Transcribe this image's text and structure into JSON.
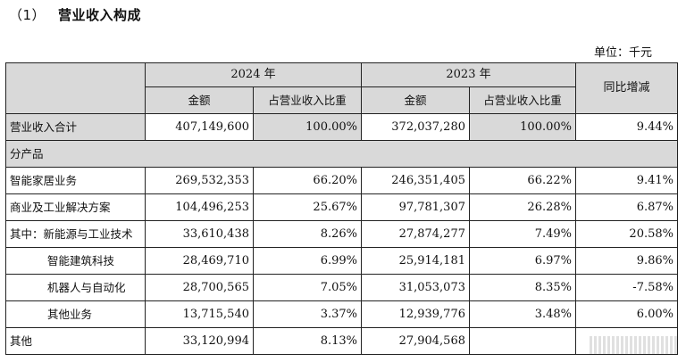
{
  "heading": {
    "number": "（1）",
    "title": "营业收入构成"
  },
  "unit": "单位：千元",
  "header": {
    "year_2024": "2024 年",
    "year_2023": "2023 年",
    "yoy": "同比增减",
    "amount": "金额",
    "share": "占营业收入比重"
  },
  "rows": [
    {
      "label": "营业收入合计",
      "a24": "407,149,600",
      "s24": "100.00%",
      "a23": "372,037,280",
      "s23": "100.00%",
      "yoy": "9.44%"
    },
    {
      "label": "分产品"
    },
    {
      "label": "智能家居业务",
      "a24": "269,532,353",
      "s24": "66.20%",
      "a23": "246,351,405",
      "s23": "66.22%",
      "yoy": "9.41%"
    },
    {
      "label": "商业及工业解决方案",
      "a24": "104,496,253",
      "s24": "25.67%",
      "a23": "97,781,307",
      "s23": "26.28%",
      "yoy": "6.87%"
    },
    {
      "label": "其中：新能源与工业技术",
      "a24": "33,610,438",
      "s24": "8.26%",
      "a23": "27,874,277",
      "s23": "7.49%",
      "yoy": "20.58%"
    },
    {
      "label": "智能建筑科技",
      "a24": "28,469,710",
      "s24": "6.99%",
      "a23": "25,914,181",
      "s23": "6.97%",
      "yoy": "9.86%"
    },
    {
      "label": "机器人与自动化",
      "a24": "28,700,565",
      "s24": "7.05%",
      "a23": "31,053,073",
      "s23": "8.35%",
      "yoy": "-7.58%"
    },
    {
      "label": "其他业务",
      "a24": "13,715,540",
      "s24": "3.37%",
      "a23": "12,939,776",
      "s23": "3.48%",
      "yoy": "6.00%"
    },
    {
      "label": "其他",
      "a24": "33,120,994",
      "s24": "8.13%",
      "a23": "27,904,568",
      "s23": "",
      "yoy": ""
    }
  ]
}
